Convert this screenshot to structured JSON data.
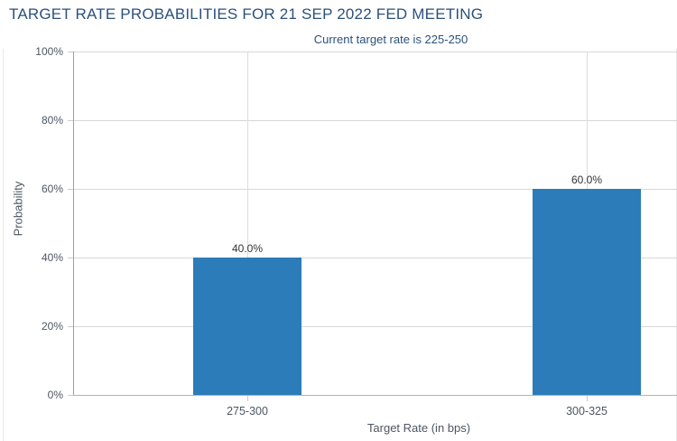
{
  "header": {
    "title": "TARGET RATE PROBABILITIES FOR 21 SEP 2022 FED MEETING",
    "subtitle": "Current target rate is 225-250"
  },
  "chart_data": {
    "type": "bar",
    "title": "TARGET RATE PROBABILITIES FOR 21 SEP 2022 FED MEETING",
    "subtitle": "Current target rate is 225-250",
    "categories": [
      "275-300",
      "300-325"
    ],
    "values": [
      40.0,
      60.0
    ],
    "value_labels": [
      "40.0%",
      "60.0%"
    ],
    "xlabel": "Target Rate (in bps)",
    "ylabel": "Probability",
    "ylim": [
      0,
      100
    ],
    "yticks": [
      0,
      20,
      40,
      60,
      80,
      100
    ],
    "ytick_labels": [
      "0%",
      "20%",
      "40%",
      "60%",
      "80%",
      "100%"
    ],
    "grid": true,
    "legend_position": "none",
    "bar_color": "#2b7cb8",
    "title_color": "#2b517c",
    "axis_label_color": "#4d5663",
    "value_label_color": "#333333"
  }
}
